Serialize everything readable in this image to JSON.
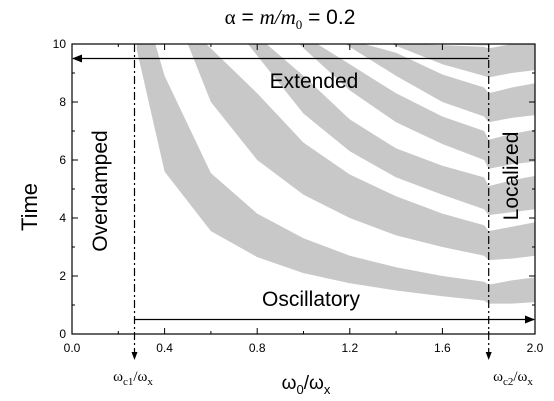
{
  "chart_data": {
    "type": "area",
    "title": {
      "alpha": "α",
      "eq": " = ",
      "m": "m",
      "slash": "/",
      "m0": "m",
      "m0_sub": "0",
      "value": " = 0.2"
    },
    "xlabel": {
      "omega": "ω",
      "sub0": "0",
      "slash": "/ω",
      "subx": "x"
    },
    "ylabel": "Time",
    "xlim": [
      0.0,
      2.0
    ],
    "ylim": [
      0,
      10
    ],
    "x_ticks": [
      0.0,
      0.4,
      0.8,
      1.2,
      1.6,
      2.0
    ],
    "y_ticks": [
      0,
      2,
      4,
      6,
      8,
      10
    ],
    "x_tick_labels": [
      "0.0",
      "0.4",
      "0.8",
      "1.2",
      "1.6",
      "2.0"
    ],
    "y_tick_labels": [
      "0",
      "2",
      "4",
      "6",
      "8",
      "10"
    ],
    "critical_lines": [
      {
        "x": 0.27,
        "label": "ωc1/ωx",
        "label_parts": [
          "ω",
          "c1",
          "/ω",
          "x"
        ]
      },
      {
        "x": 1.8,
        "label": "ωc2/ωx",
        "label_parts": [
          "ω",
          "c2",
          "/ω",
          "x"
        ]
      }
    ],
    "regions": {
      "extended": "Extended",
      "oscillatory": "Oscillatory",
      "overdamped": "Overdamped",
      "localized": "Localized"
    },
    "arrows": {
      "extended": {
        "from_x": 1.8,
        "to_x": 0.0,
        "y": 9.5
      },
      "oscillatory": {
        "from_x": 0.27,
        "to_x": 2.0,
        "y": 0.5
      }
    },
    "band_color": "#c8c8c8",
    "bands": [
      {
        "index": 1,
        "lower": [
          [
            0.28,
            9.8
          ],
          [
            0.4,
            5.6
          ],
          [
            0.6,
            3.55
          ],
          [
            0.8,
            2.65
          ],
          [
            1.0,
            2.1
          ],
          [
            1.2,
            1.75
          ],
          [
            1.4,
            1.5
          ],
          [
            1.6,
            1.3
          ],
          [
            1.78,
            1.15
          ],
          [
            1.8,
            1.05
          ],
          [
            1.9,
            1.05
          ],
          [
            2.0,
            1.1
          ]
        ],
        "upper": [
          [
            0.28,
            10.0
          ],
          [
            0.36,
            10.0
          ],
          [
            0.4,
            8.9
          ],
          [
            0.6,
            5.55
          ],
          [
            0.8,
            4.15
          ],
          [
            1.0,
            3.3
          ],
          [
            1.2,
            2.7
          ],
          [
            1.4,
            2.3
          ],
          [
            1.6,
            2.0
          ],
          [
            1.78,
            1.8
          ],
          [
            1.8,
            1.7
          ],
          [
            1.9,
            1.85
          ],
          [
            2.0,
            1.95
          ]
        ]
      },
      {
        "index": 2,
        "lower": [
          [
            0.5,
            10.0
          ],
          [
            0.6,
            8.0
          ],
          [
            0.8,
            6.0
          ],
          [
            1.0,
            4.8
          ],
          [
            1.2,
            4.0
          ],
          [
            1.4,
            3.4
          ],
          [
            1.6,
            3.0
          ],
          [
            1.78,
            2.7
          ],
          [
            1.8,
            2.55
          ],
          [
            1.9,
            2.6
          ],
          [
            2.0,
            2.7
          ]
        ],
        "upper": [
          [
            0.58,
            10.0
          ],
          [
            0.8,
            8.3
          ],
          [
            1.0,
            6.6
          ],
          [
            1.2,
            5.5
          ],
          [
            1.4,
            4.75
          ],
          [
            1.6,
            4.15
          ],
          [
            1.78,
            3.75
          ],
          [
            1.8,
            3.55
          ],
          [
            1.9,
            3.7
          ],
          [
            2.0,
            3.85
          ]
        ]
      },
      {
        "index": 3,
        "lower": [
          [
            0.76,
            10.0
          ],
          [
            1.0,
            7.6
          ],
          [
            1.2,
            6.3
          ],
          [
            1.4,
            5.4
          ],
          [
            1.6,
            4.8
          ],
          [
            1.78,
            4.3
          ],
          [
            1.8,
            4.1
          ],
          [
            1.9,
            4.2
          ],
          [
            2.0,
            4.3
          ]
        ],
        "upper": [
          [
            0.84,
            10.0
          ],
          [
            1.0,
            8.9
          ],
          [
            1.2,
            7.4
          ],
          [
            1.4,
            6.4
          ],
          [
            1.6,
            5.8
          ],
          [
            1.78,
            5.4
          ],
          [
            1.8,
            5.1
          ],
          [
            1.9,
            5.3
          ],
          [
            2.0,
            5.45
          ]
        ]
      },
      {
        "index": 4,
        "lower": [
          [
            0.98,
            10.0
          ],
          [
            1.2,
            8.4
          ],
          [
            1.4,
            7.3
          ],
          [
            1.6,
            6.55
          ],
          [
            1.78,
            6.0
          ],
          [
            1.8,
            5.7
          ],
          [
            1.9,
            5.85
          ],
          [
            2.0,
            5.95
          ]
        ],
        "upper": [
          [
            1.06,
            10.0
          ],
          [
            1.2,
            9.3
          ],
          [
            1.4,
            8.3
          ],
          [
            1.6,
            7.5
          ],
          [
            1.78,
            7.0
          ],
          [
            1.8,
            6.7
          ],
          [
            1.9,
            6.9
          ],
          [
            2.0,
            7.05
          ]
        ]
      },
      {
        "index": 5,
        "lower": [
          [
            1.18,
            10.0
          ],
          [
            1.4,
            8.9
          ],
          [
            1.6,
            8.0
          ],
          [
            1.78,
            7.5
          ],
          [
            1.8,
            7.3
          ],
          [
            1.9,
            7.45
          ],
          [
            2.0,
            7.55
          ]
        ],
        "upper": [
          [
            1.26,
            10.0
          ],
          [
            1.4,
            9.7
          ],
          [
            1.6,
            8.95
          ],
          [
            1.78,
            8.5
          ],
          [
            1.8,
            8.3
          ],
          [
            1.9,
            8.5
          ],
          [
            2.0,
            8.65
          ]
        ]
      },
      {
        "index": 6,
        "lower": [
          [
            1.38,
            10.0
          ],
          [
            1.6,
            9.3
          ],
          [
            1.78,
            8.9
          ],
          [
            1.8,
            8.85
          ],
          [
            1.9,
            9.0
          ],
          [
            2.0,
            9.1
          ]
        ],
        "upper": [
          [
            1.48,
            10.0
          ],
          [
            1.78,
            9.9
          ],
          [
            1.8,
            9.85
          ],
          [
            1.9,
            10.0
          ],
          [
            2.0,
            10.0
          ]
        ]
      },
      {
        "index": 7,
        "lower": [
          [
            1.58,
            10.0
          ],
          [
            1.78,
            9.95
          ],
          [
            1.8,
            9.95
          ]
        ],
        "upper": [
          [
            1.66,
            10.0
          ],
          [
            1.8,
            10.0
          ]
        ]
      }
    ]
  }
}
